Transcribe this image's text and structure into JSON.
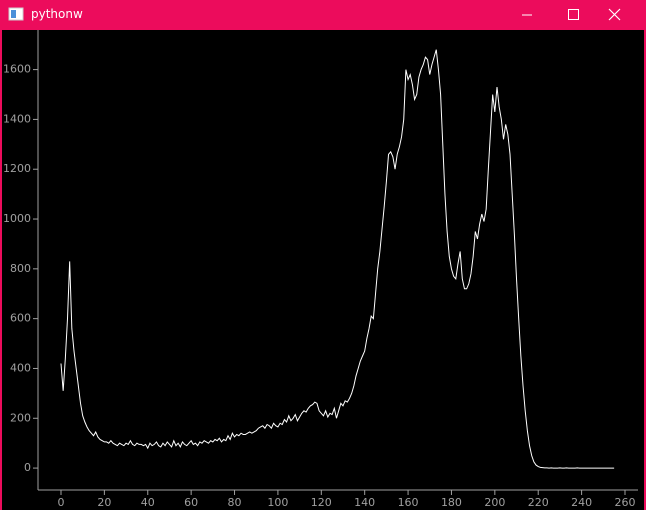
{
  "window": {
    "title": "pythonw"
  },
  "chart_data": {
    "type": "line",
    "color": "#ffffff",
    "x": [
      0,
      1,
      2,
      3,
      4,
      5,
      6,
      7,
      8,
      9,
      10,
      11,
      12,
      13,
      14,
      15,
      16,
      17,
      18,
      19,
      20,
      21,
      22,
      23,
      24,
      25,
      26,
      27,
      28,
      29,
      30,
      31,
      32,
      33,
      34,
      35,
      36,
      37,
      38,
      39,
      40,
      41,
      42,
      43,
      44,
      45,
      46,
      47,
      48,
      49,
      50,
      51,
      52,
      53,
      54,
      55,
      56,
      57,
      58,
      59,
      60,
      61,
      62,
      63,
      64,
      65,
      66,
      67,
      68,
      69,
      70,
      71,
      72,
      73,
      74,
      75,
      76,
      77,
      78,
      79,
      80,
      81,
      82,
      83,
      84,
      85,
      86,
      87,
      88,
      89,
      90,
      91,
      92,
      93,
      94,
      95,
      96,
      97,
      98,
      99,
      100,
      101,
      102,
      103,
      104,
      105,
      106,
      107,
      108,
      109,
      110,
      111,
      112,
      113,
      114,
      115,
      116,
      117,
      118,
      119,
      120,
      121,
      122,
      123,
      124,
      125,
      126,
      127,
      128,
      129,
      130,
      131,
      132,
      133,
      134,
      135,
      136,
      137,
      138,
      139,
      140,
      141,
      142,
      143,
      144,
      145,
      146,
      147,
      148,
      149,
      150,
      151,
      152,
      153,
      154,
      155,
      156,
      157,
      158,
      159,
      160,
      161,
      162,
      163,
      164,
      165,
      166,
      167,
      168,
      169,
      170,
      171,
      172,
      173,
      174,
      175,
      176,
      177,
      178,
      179,
      180,
      181,
      182,
      183,
      184,
      185,
      186,
      187,
      188,
      189,
      190,
      191,
      192,
      193,
      194,
      195,
      196,
      197,
      198,
      199,
      200,
      201,
      202,
      203,
      204,
      205,
      206,
      207,
      208,
      209,
      210,
      211,
      212,
      213,
      214,
      215,
      216,
      217,
      218,
      219,
      220,
      221,
      222,
      223,
      224,
      225,
      226,
      227,
      228,
      229,
      230,
      231,
      232,
      233,
      234,
      235,
      236,
      237,
      238,
      239,
      240,
      241,
      242,
      243,
      244,
      245,
      246,
      247,
      248,
      249,
      250,
      251,
      252,
      253,
      254,
      255
    ],
    "values": [
      420,
      310,
      440,
      600,
      830,
      560,
      470,
      400,
      330,
      260,
      210,
      185,
      165,
      150,
      140,
      130,
      145,
      125,
      115,
      110,
      105,
      105,
      100,
      110,
      100,
      95,
      90,
      100,
      95,
      90,
      100,
      95,
      110,
      95,
      90,
      100,
      95,
      95,
      90,
      95,
      80,
      100,
      90,
      95,
      105,
      90,
      85,
      100,
      90,
      105,
      95,
      85,
      110,
      90,
      100,
      85,
      105,
      95,
      90,
      100,
      110,
      95,
      100,
      90,
      105,
      100,
      110,
      105,
      100,
      110,
      105,
      115,
      110,
      120,
      105,
      115,
      110,
      130,
      115,
      140,
      125,
      135,
      130,
      140,
      135,
      135,
      140,
      145,
      140,
      145,
      150,
      160,
      165,
      170,
      160,
      175,
      170,
      160,
      180,
      170,
      165,
      180,
      175,
      195,
      185,
      210,
      190,
      200,
      215,
      190,
      205,
      220,
      230,
      225,
      240,
      250,
      255,
      265,
      260,
      230,
      220,
      210,
      230,
      205,
      220,
      215,
      240,
      200,
      230,
      260,
      250,
      270,
      265,
      280,
      300,
      330,
      370,
      400,
      430,
      450,
      470,
      520,
      560,
      610,
      600,
      700,
      800,
      870,
      960,
      1050,
      1150,
      1260,
      1270,
      1250,
      1200,
      1260,
      1290,
      1330,
      1400,
      1600,
      1560,
      1580,
      1540,
      1480,
      1500,
      1570,
      1600,
      1620,
      1650,
      1640,
      1580,
      1620,
      1650,
      1680,
      1600,
      1500,
      1300,
      1100,
      950,
      850,
      800,
      770,
      760,
      820,
      870,
      760,
      720,
      720,
      740,
      780,
      850,
      950,
      920,
      980,
      1020,
      990,
      1040,
      1200,
      1350,
      1500,
      1430,
      1530,
      1450,
      1400,
      1320,
      1380,
      1340,
      1260,
      1100,
      940,
      760,
      600,
      450,
      330,
      230,
      150,
      90,
      50,
      25,
      12,
      6,
      3,
      2,
      1,
      1,
      0,
      1,
      0,
      0,
      0,
      1,
      0,
      0,
      1,
      0,
      0,
      0,
      0,
      1,
      0,
      0,
      0,
      0,
      0,
      0,
      0,
      0,
      0,
      0,
      0,
      0,
      0,
      0,
      0,
      0,
      0
    ],
    "xlim": [
      -10.6,
      266
    ],
    "ylim": [
      -88,
      1759
    ],
    "xticks": [
      0,
      20,
      40,
      60,
      80,
      100,
      120,
      140,
      160,
      180,
      200,
      220,
      240,
      260
    ],
    "yticks": [
      0,
      200,
      400,
      600,
      800,
      1000,
      1200,
      1400,
      1600
    ]
  }
}
